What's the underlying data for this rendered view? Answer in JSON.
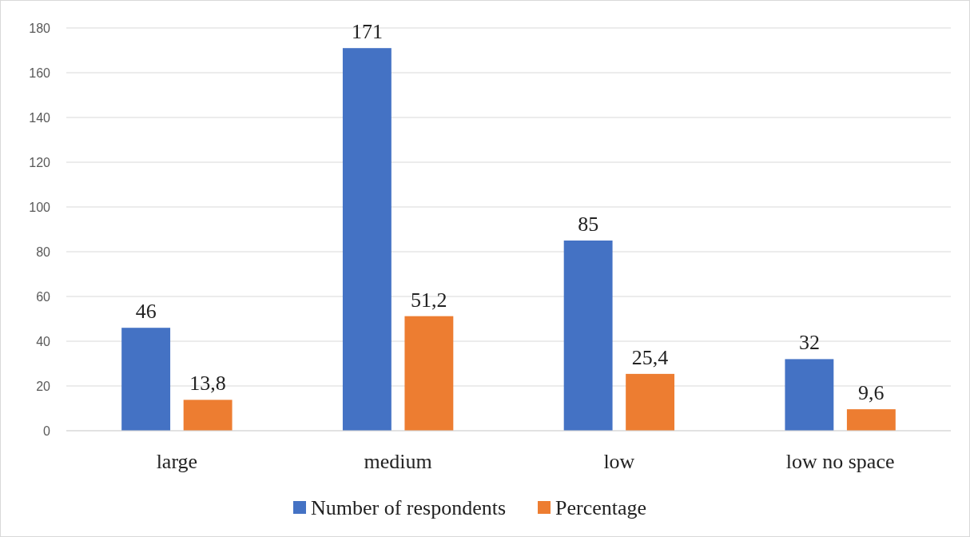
{
  "chart_data": {
    "type": "bar",
    "categories": [
      "large",
      "medium",
      "low",
      "low no space"
    ],
    "series": [
      {
        "name": "Number of respondents",
        "color": "#4472c4",
        "values": [
          46,
          171,
          85,
          32
        ],
        "value_labels": [
          "46",
          "171",
          "85",
          "32"
        ]
      },
      {
        "name": "Percentage",
        "color": "#ed7d31",
        "values": [
          13.8,
          51.2,
          25.4,
          9.6
        ],
        "value_labels": [
          "13,8",
          "51,2",
          "25,4",
          "9,6"
        ]
      }
    ],
    "ylim": [
      0,
      180
    ],
    "yticks": [
      0,
      20,
      40,
      60,
      80,
      100,
      120,
      140,
      160,
      180
    ],
    "grid": "y",
    "legend": "bottom"
  }
}
